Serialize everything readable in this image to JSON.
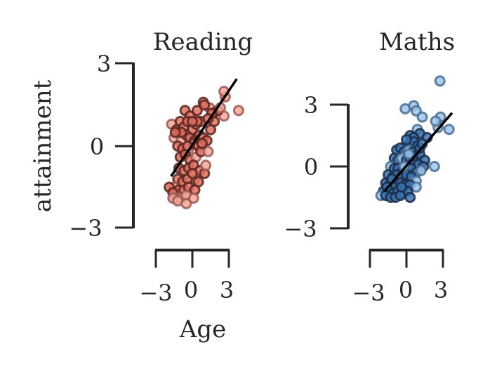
{
  "chart_data": [
    {
      "type": "scatter",
      "title": "Reading",
      "xlabel": "Age",
      "ylabel": "attainment",
      "xlim": [
        -3,
        3
      ],
      "ylim": [
        -3,
        3
      ],
      "xticks": [
        -3,
        0,
        3
      ],
      "yticks": [
        -3,
        0,
        3
      ],
      "xtick_labels": [
        "−3",
        "0",
        "3"
      ],
      "ytick_labels": [
        "−3",
        "0",
        "3"
      ],
      "grid": false,
      "colors": {
        "fill": "#e0705f",
        "edge": "#5a2520",
        "fill_light": "#f6a89a",
        "edge_light": "#9a5a52"
      },
      "regression": {
        "x": [
          -1.75,
          3.65
        ],
        "y": [
          -1.1,
          2.45
        ]
      },
      "points": [
        [
          -1.7,
          0.8
        ],
        [
          -1.3,
          0.6
        ],
        [
          -1.0,
          0.9
        ],
        [
          -0.6,
          1.3
        ],
        [
          -0.2,
          1.1
        ],
        [
          0.4,
          1.3
        ],
        [
          0.9,
          1.6
        ],
        [
          1.4,
          1.4
        ],
        [
          1.7,
          1.2
        ],
        [
          2.6,
          1.1
        ],
        [
          2.7,
          1.8
        ],
        [
          2.6,
          2.0
        ],
        [
          3.8,
          1.3
        ],
        [
          1.0,
          1.5
        ],
        [
          -1.5,
          0.3
        ],
        [
          -1.1,
          0.5
        ],
        [
          -0.7,
          0.7
        ],
        [
          -0.4,
          0.9
        ],
        [
          0.0,
          0.6
        ],
        [
          0.3,
          0.8
        ],
        [
          0.7,
          0.9
        ],
        [
          -0.9,
          0.2
        ],
        [
          -0.5,
          0.4
        ],
        [
          -0.2,
          0.3
        ],
        [
          0.2,
          0.2
        ],
        [
          0.6,
          0.4
        ],
        [
          -1.2,
          0.0
        ],
        [
          -0.8,
          -0.1
        ],
        [
          -0.3,
          -0.1
        ],
        [
          0.1,
          0.1
        ],
        [
          0.5,
          0.0
        ],
        [
          0.9,
          0.3
        ],
        [
          -1.0,
          -0.4
        ],
        [
          -0.6,
          -0.3
        ],
        [
          -0.2,
          -0.5
        ],
        [
          0.3,
          -0.4
        ],
        [
          0.7,
          -0.2
        ],
        [
          1.2,
          0.2
        ],
        [
          1.5,
          0.6
        ],
        [
          1.8,
          0.9
        ],
        [
          2.1,
          1.3
        ],
        [
          1.6,
          1.2
        ],
        [
          1.3,
          -0.2
        ],
        [
          0.4,
          0.9
        ],
        [
          -1.1,
          -0.8
        ],
        [
          -0.7,
          -0.9
        ],
        [
          -0.3,
          -0.8
        ],
        [
          0.1,
          -0.7
        ],
        [
          0.6,
          -0.9
        ],
        [
          0.2,
          -1.2
        ],
        [
          -1.2,
          -1.2
        ],
        [
          -0.8,
          -1.3
        ],
        [
          -0.4,
          -1.2
        ],
        [
          0.0,
          -1.0
        ],
        [
          0.5,
          -1.3
        ],
        [
          1.0,
          -1.0
        ],
        [
          -1.5,
          -1.5
        ],
        [
          -1.1,
          -1.6
        ],
        [
          -0.7,
          -1.6
        ],
        [
          -0.3,
          -1.5
        ],
        [
          0.2,
          -1.6
        ],
        [
          -1.9,
          -1.5
        ],
        [
          -1.6,
          -1.7
        ],
        [
          -1.3,
          -1.9
        ],
        [
          -0.9,
          -1.9
        ],
        [
          -0.5,
          -1.8
        ],
        [
          0.1,
          -1.9
        ],
        [
          -1.6,
          -1.9
        ],
        [
          -1.2,
          -2.0
        ],
        [
          -0.5,
          -2.1
        ],
        [
          1.1,
          -0.7
        ],
        [
          0.8,
          0.1
        ],
        [
          -0.4,
          0.0
        ],
        [
          0.0,
          0.9
        ],
        [
          -0.9,
          0.5
        ],
        [
          -1.4,
          0.5
        ],
        [
          1.3,
          1.0
        ],
        [
          2.3,
          1.4
        ]
      ]
    },
    {
      "type": "scatter",
      "title": "Maths",
      "xlabel": "",
      "ylabel": "",
      "xlim": [
        -3,
        3
      ],
      "ylim": [
        -3,
        3
      ],
      "xticks": [
        -3,
        0,
        3
      ],
      "yticks": [
        -3,
        0,
        3
      ],
      "xtick_labels": [
        "−3",
        "0",
        "3"
      ],
      "ytick_labels": [
        "−3",
        "0",
        "3"
      ],
      "grid": false,
      "colors": {
        "fill": "#3b73b0",
        "edge": "#1a2e4a",
        "fill_light": "#9fc8ef",
        "edge_light": "#4a6d91"
      },
      "regression": {
        "x": [
          -1.8,
          3.75
        ],
        "y": [
          -1.2,
          2.6
        ]
      },
      "points": [
        [
          2.75,
          4.15
        ],
        [
          -0.1,
          2.8
        ],
        [
          0.6,
          2.95
        ],
        [
          0.8,
          2.7
        ],
        [
          1.3,
          2.4
        ],
        [
          2.8,
          2.4
        ],
        [
          2.6,
          1.9
        ],
        [
          3.5,
          1.8
        ],
        [
          0.9,
          1.8
        ],
        [
          1.1,
          1.6
        ],
        [
          0.3,
          1.5
        ],
        [
          0.6,
          1.4
        ],
        [
          1.7,
          1.4
        ],
        [
          2.4,
          2.2
        ],
        [
          0.0,
          1.0
        ],
        [
          0.3,
          1.1
        ],
        [
          0.6,
          1.2
        ],
        [
          0.9,
          1.0
        ],
        [
          -0.8,
          0.8
        ],
        [
          -0.5,
          0.9
        ],
        [
          -0.2,
          0.7
        ],
        [
          0.2,
          0.8
        ],
        [
          0.5,
          0.7
        ],
        [
          0.8,
          0.5
        ],
        [
          1.1,
          0.6
        ],
        [
          1.5,
          0.3
        ],
        [
          -1.0,
          0.4
        ],
        [
          -0.7,
          0.3
        ],
        [
          -0.4,
          0.4
        ],
        [
          0.0,
          0.3
        ],
        [
          0.3,
          0.4
        ],
        [
          0.6,
          0.2
        ],
        [
          1.0,
          0.1
        ],
        [
          1.4,
          0.0
        ],
        [
          2.3,
          0.0
        ],
        [
          -1.3,
          0.0
        ],
        [
          -1.0,
          -0.1
        ],
        [
          -0.7,
          -0.1
        ],
        [
          -0.3,
          -0.2
        ],
        [
          0.1,
          0.0
        ],
        [
          0.4,
          -0.1
        ],
        [
          0.8,
          -0.3
        ],
        [
          1.2,
          -0.2
        ],
        [
          -1.5,
          -0.4
        ],
        [
          -1.1,
          -0.5
        ],
        [
          -0.8,
          -0.4
        ],
        [
          -0.4,
          -0.5
        ],
        [
          0.0,
          -0.4
        ],
        [
          0.4,
          -0.5
        ],
        [
          0.8,
          -0.7
        ],
        [
          -1.7,
          -0.8
        ],
        [
          -1.3,
          -0.8
        ],
        [
          -0.9,
          -0.9
        ],
        [
          -0.5,
          -0.8
        ],
        [
          -0.1,
          -0.9
        ],
        [
          0.3,
          -0.9
        ],
        [
          0.8,
          -1.0
        ],
        [
          -1.9,
          -1.2
        ],
        [
          -1.5,
          -1.2
        ],
        [
          -1.1,
          -1.3
        ],
        [
          -0.7,
          -1.2
        ],
        [
          -0.3,
          -1.3
        ],
        [
          0.1,
          -1.2
        ],
        [
          -2.1,
          -1.4
        ],
        [
          -1.7,
          -1.4
        ],
        [
          -1.3,
          -1.5
        ],
        [
          -0.9,
          -1.5
        ],
        [
          -0.5,
          -1.4
        ],
        [
          0.3,
          -1.5
        ],
        [
          -1.6,
          -1.0
        ],
        [
          -0.2,
          0.0
        ],
        [
          0.5,
          0.5
        ],
        [
          1.1,
          0.9
        ],
        [
          -0.4,
          -1.0
        ],
        [
          0.0,
          1.3
        ],
        [
          1.3,
          1.1
        ],
        [
          -1.2,
          -0.6
        ],
        [
          0.2,
          0.6
        ]
      ]
    }
  ]
}
